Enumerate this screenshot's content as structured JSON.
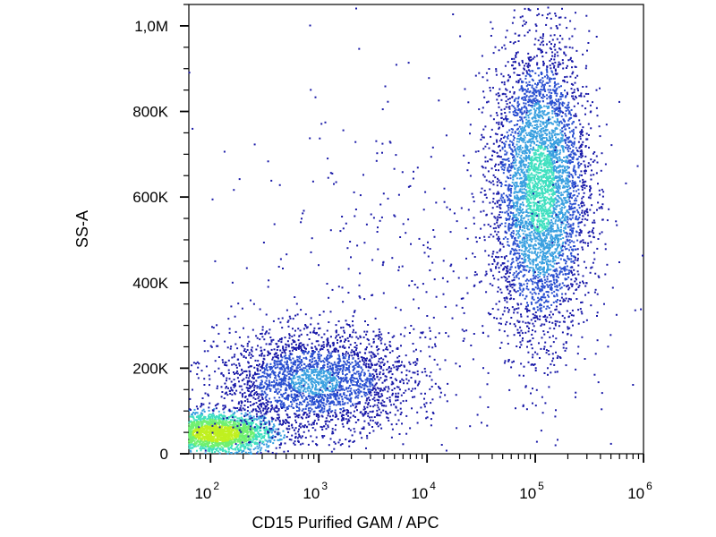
{
  "chart_data": {
    "type": "scatter",
    "title": "",
    "xlabel": "CD15 Purified GAM / APC",
    "ylabel": "SS-A",
    "x_scale": "log",
    "xlim": [
      63,
      1000000
    ],
    "ylim": [
      0,
      1050000
    ],
    "grid": false,
    "x_ticks": [
      {
        "value": 100,
        "base": "10",
        "exp": "2"
      },
      {
        "value": 1000,
        "base": "10",
        "exp": "3"
      },
      {
        "value": 10000,
        "base": "10",
        "exp": "4"
      },
      {
        "value": 100000,
        "base": "10",
        "exp": "5"
      },
      {
        "value": 1000000,
        "base": "10",
        "exp": "6"
      }
    ],
    "y_ticks": [
      {
        "value": 0,
        "label": "0"
      },
      {
        "value": 200000,
        "label": "200K"
      },
      {
        "value": 400000,
        "label": "400K"
      },
      {
        "value": 600000,
        "label": "600K"
      },
      {
        "value": 800000,
        "label": "800K"
      },
      {
        "value": 1000000,
        "label": "1,0M"
      }
    ],
    "density_colors": [
      "#1a1aa8",
      "#2a4fd0",
      "#3aa0e0",
      "#40e0c0",
      "#70f070",
      "#c0f020"
    ],
    "populations": [
      {
        "name_hidden": true,
        "x_center": 110,
        "y_center": 50000,
        "x_spread_decades": 0.28,
        "y_spread": 25000,
        "count": 2200,
        "density": "high"
      },
      {
        "name_hidden": true,
        "x_center": 900,
        "y_center": 170000,
        "x_spread_decades": 0.45,
        "y_spread": 60000,
        "count": 2600,
        "density": "medium"
      },
      {
        "name_hidden": true,
        "x_center": 110000,
        "y_center": 620000,
        "x_spread_decades": 0.22,
        "y_spread": 170000,
        "count": 4500,
        "density": "medium-high"
      },
      {
        "name_hidden": true,
        "x_center": 8000,
        "y_center": 400000,
        "x_spread_decades": 1.0,
        "y_spread": 230000,
        "count": 450,
        "density": "sparse"
      }
    ]
  }
}
